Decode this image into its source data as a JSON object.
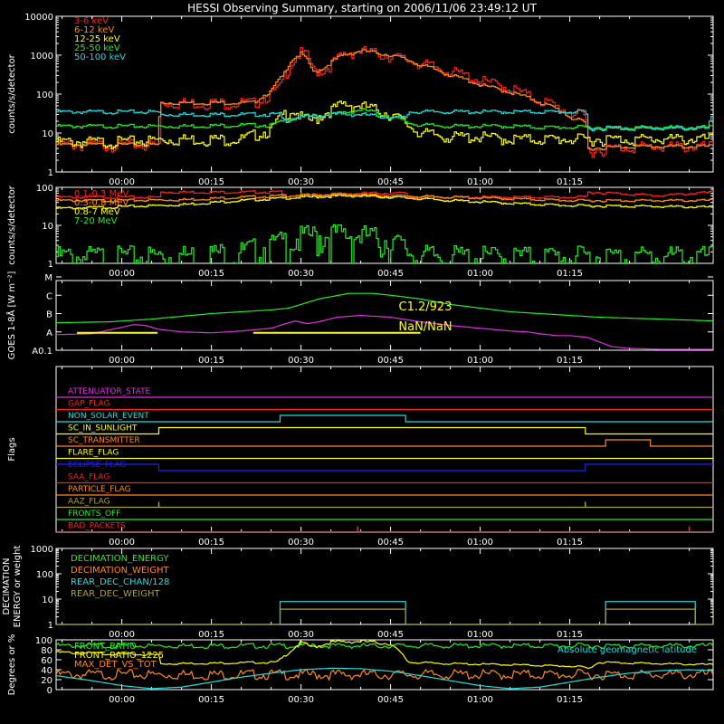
{
  "title": "HESSI Observing Summary, starting on 2006/11/06 23:49:12 UT",
  "time_ticks": [
    "00:00",
    "00:15",
    "00:30",
    "00:45",
    "01:00",
    "01:15"
  ],
  "colors": {
    "red": "#ff2020",
    "orange": "#ff8a1c",
    "yellow": "#ffff00",
    "green": "#22ee22",
    "cyan": "#22dddd",
    "magenta": "#e030e0",
    "blue": "#2020ff",
    "olive": "#a8a040",
    "white": "#ffffff"
  },
  "chart_data": [
    {
      "type": "line",
      "name": "lightcurves-low",
      "ylabel": "counts/s/detector",
      "yscale": "log",
      "ylim": [
        1,
        10000
      ],
      "yticks": [
        "1",
        "10",
        "100",
        "1000",
        "10000"
      ],
      "xlim_minutes": [
        -11,
        99
      ],
      "legend": [
        "3-6 keV",
        "6-12 keV",
        "12-25 keV",
        "25-50 keV",
        "50-100 keV"
      ],
      "series": [
        {
          "name": "3-6 keV",
          "x": [
            -11,
            -2,
            6.2,
            6.5,
            15,
            22,
            25,
            26.5,
            28,
            30,
            31,
            32,
            34,
            36,
            38,
            40,
            45,
            50,
            55,
            60,
            65,
            68,
            70,
            73,
            75,
            77.6,
            78,
            85,
            90,
            99
          ],
          "y": [
            5,
            5,
            5,
            60,
            60,
            60,
            100,
            150,
            500,
            1200,
            950,
            400,
            420,
            800,
            1200,
            1300,
            950,
            600,
            380,
            220,
            140,
            90,
            70,
            45,
            35,
            25,
            3.5,
            4.5,
            4.5,
            4.5
          ]
        },
        {
          "name": "6-12 keV",
          "x": [
            -11,
            -2,
            6,
            6.5,
            15,
            22,
            25,
            27,
            28.5,
            30,
            31,
            32,
            34,
            37,
            40,
            45,
            50,
            55,
            60,
            65,
            70,
            73,
            75,
            77.6,
            78,
            85,
            90,
            99
          ],
          "y": [
            5,
            5,
            5,
            60,
            60,
            60,
            120,
            300,
            800,
            1100,
            700,
            350,
            500,
            1000,
            1300,
            1000,
            550,
            300,
            170,
            110,
            60,
            40,
            25,
            18,
            4,
            4.5,
            4.5,
            4.5
          ]
        },
        {
          "name": "12-25 keV",
          "x": [
            -11,
            -2,
            10,
            20,
            25,
            27,
            28.5,
            30,
            32,
            35,
            37,
            40,
            45,
            48,
            50,
            55,
            60,
            65,
            70,
            75,
            80,
            85,
            90,
            99
          ],
          "y": [
            6,
            6,
            7,
            7,
            12,
            30,
            40,
            25,
            20,
            40,
            55,
            50,
            30,
            15,
            10,
            8,
            8,
            7,
            7,
            7,
            7,
            7,
            7,
            7
          ]
        },
        {
          "name": "25-50 keV",
          "x": [
            -11,
            -2,
            10,
            20,
            25,
            28,
            30,
            32,
            35,
            38,
            40,
            42,
            45,
            48,
            50,
            55,
            60,
            65,
            70,
            75,
            80,
            85,
            90,
            99
          ],
          "y": [
            15,
            15,
            15,
            16,
            16,
            22,
            26,
            28,
            30,
            35,
            40,
            35,
            26,
            18,
            16,
            15,
            15,
            15,
            14,
            14,
            14,
            14,
            14,
            14
          ]
        },
        {
          "name": "50-100 keV",
          "x": [
            -11,
            -2,
            6,
            6.5,
            15,
            26.5,
            27,
            28.5,
            30,
            35,
            40,
            45,
            47.5,
            48,
            60,
            77.6,
            78,
            85,
            98,
            99
          ],
          "y": [
            35,
            35,
            35,
            30,
            30,
            30,
            20,
            25,
            25,
            30,
            30,
            25,
            25,
            35,
            35,
            35,
            13,
            13,
            13,
            30
          ]
        }
      ]
    },
    {
      "type": "line",
      "name": "lightcurves-high",
      "ylabel": "counts/s/detector",
      "yscale": "log",
      "ylim": [
        1,
        100
      ],
      "yticks": [
        "1",
        "10",
        "100"
      ],
      "xlim_minutes": [
        -11,
        99
      ],
      "legend": [
        "0.1-0.3 MeV",
        "0.3-0.8 MeV",
        "0.8-7 MeV",
        "7-20 MeV"
      ],
      "series": [
        {
          "name": "0.1-0.3 MeV",
          "x": [
            -11,
            -2,
            6.2,
            6.5,
            15,
            26.5,
            27,
            30,
            40,
            47.5,
            48,
            60,
            77.6,
            78,
            90,
            99
          ],
          "y": [
            55,
            55,
            55,
            75,
            75,
            75,
            60,
            62,
            70,
            70,
            55,
            55,
            55,
            75,
            60,
            75
          ]
        },
        {
          "name": "0.3-0.8 MeV",
          "x": [
            -11,
            -2,
            10,
            20,
            30,
            38,
            45,
            55,
            65,
            75,
            85,
            99
          ],
          "y": [
            45,
            45,
            47,
            55,
            62,
            65,
            60,
            55,
            50,
            45,
            45,
            45
          ]
        },
        {
          "name": "0.8-7 MeV",
          "x": [
            -11,
            -2,
            10,
            20,
            30,
            38,
            45,
            55,
            65,
            75,
            85,
            99
          ],
          "y": [
            28,
            30,
            35,
            45,
            55,
            60,
            55,
            45,
            38,
            33,
            32,
            30
          ]
        },
        {
          "name": "7-20 MeV",
          "x": [
            -11,
            -2,
            10,
            20,
            25,
            30,
            35,
            40,
            45,
            48,
            50,
            60,
            75,
            99
          ],
          "y": [
            1.5,
            1.5,
            1.6,
            2,
            3,
            5,
            6,
            5.5,
            4,
            2,
            1.6,
            1.5,
            1.5,
            1.5
          ]
        }
      ]
    },
    {
      "type": "line",
      "name": "goes",
      "ylabel": "GOES 1-8Å [W m⁻²]",
      "yscale": "log",
      "ylim_labels": [
        "A0.1",
        "A",
        "B",
        "C",
        "M"
      ],
      "annotation_text": [
        "C1.2/923",
        "NaN/NaN"
      ],
      "xlim_minutes": [
        -11,
        99
      ],
      "series": [
        {
          "name": "GOES long",
          "x": [
            -11,
            -2,
            5,
            10,
            15,
            20,
            25,
            28,
            30,
            33,
            38,
            42,
            45,
            50,
            55,
            60,
            65,
            70,
            75,
            80,
            85,
            90,
            99
          ],
          "y": [
            0.5,
            0.55,
            0.7,
            0.85,
            1.0,
            1.1,
            1.2,
            1.3,
            1.5,
            1.8,
            2.1,
            2.1,
            2.0,
            1.8,
            1.5,
            1.3,
            1.1,
            1.0,
            0.9,
            0.8,
            0.75,
            0.7,
            0.6
          ]
        },
        {
          "name": "GOES short",
          "x": [
            -11,
            -5,
            0,
            2,
            4,
            6,
            10,
            15,
            20,
            25,
            28,
            29,
            31,
            33,
            36,
            40,
            45,
            50,
            55,
            60,
            65,
            68,
            70,
            73,
            75,
            78,
            80,
            82,
            85,
            90,
            99
          ],
          "y": [
            -0.15,
            -0.1,
            0.25,
            0.4,
            0.35,
            0.15,
            0.0,
            -0.05,
            0.05,
            0.2,
            0.5,
            0.6,
            0.45,
            0.55,
            0.8,
            0.9,
            0.8,
            0.55,
            0.35,
            0.2,
            0.05,
            0.0,
            -0.1,
            -0.2,
            -0.2,
            -0.3,
            -0.55,
            -0.8,
            -0.9,
            -0.95,
            -0.95
          ]
        },
        {
          "name": "flare bar 1",
          "x": [
            -7.5,
            6
          ],
          "y": [
            -0.05,
            -0.05
          ]
        },
        {
          "name": "flare bar 2",
          "x": [
            22,
            50
          ],
          "y": [
            -0.05,
            -0.05
          ]
        }
      ]
    },
    {
      "type": "line",
      "name": "flags",
      "ylabel": "Flags",
      "xlim_minutes": [
        -11,
        99
      ],
      "labels": [
        "ATTENUATOR_STATE",
        "GAP_FLAG",
        "NON_SOLAR_EVENT",
        "SC_IN_SUNLIGHT",
        "SC_TRANSMITTER",
        "FLARE_FLAG",
        "ECLIPSE_FLAG",
        "SAA_FLAG",
        "PARTICLE_FLAG",
        "AAZ_FLAG",
        "FRONTS_OFF",
        "BAD_PACKETS"
      ],
      "segments": [
        {
          "label": "NON_SOLAR_EVENT",
          "high": [
            [
              26.5,
              47.5
            ]
          ]
        },
        {
          "label": "SC_IN_SUNLIGHT",
          "high": [
            [
              6.2,
              77.6
            ]
          ]
        },
        {
          "label": "SC_TRANSMITTER",
          "high": [
            [
              81,
              88.5
            ]
          ]
        },
        {
          "label": "ECLIPSE_FLAG",
          "high": [
            [
              -11,
              6.2
            ],
            [
              77.6,
              99
            ]
          ]
        },
        {
          "label": "AAZ_FLAG",
          "spikes": [
            6.2,
            77.6
          ]
        },
        {
          "label": "BAD_PACKETS",
          "spikes": [
            39.5,
            95
          ]
        }
      ]
    },
    {
      "type": "line",
      "name": "decimation",
      "ylabel": "DECIMATION ENERGY or weight",
      "yscale": "log",
      "ylim": [
        1,
        1000
      ],
      "yticks": [
        "1",
        "10",
        "100",
        "1000"
      ],
      "xlim_minutes": [
        -11,
        99
      ],
      "legend": [
        "DECIMATION_ENERGY",
        "DECIMATION_WEIGHT",
        "REAR_DEC_CHAN/128",
        "REAR_DEC_WEIGHT"
      ],
      "series": [
        {
          "name": "REAR_DEC_CHAN/128",
          "x": [
            -11,
            26.5,
            26.5,
            47.5,
            47.5,
            81,
            81,
            96,
            96,
            99
          ],
          "y": [
            1,
            1,
            8,
            8,
            1,
            1,
            8,
            8,
            1,
            1
          ]
        },
        {
          "name": "REAR_DEC_WEIGHT",
          "x": [
            -11,
            26.5,
            26.5,
            47.5,
            47.5,
            81,
            81,
            96,
            96,
            99
          ],
          "y": [
            1,
            1,
            4,
            4,
            1,
            1,
            4,
            4,
            1,
            1
          ]
        }
      ]
    },
    {
      "type": "line",
      "name": "ratios",
      "ylabel": "Degrees or %",
      "ylim": [
        0,
        100
      ],
      "yticks": [
        "0",
        "20",
        "40",
        "60",
        "80",
        "100"
      ],
      "xlim_minutes": [
        -11,
        99
      ],
      "legend": [
        "FRONT_RATIO",
        "FRONT_RATIO_1225",
        "MAX_DET_VS_TOT"
      ],
      "annotation_text": "Absolute geomagnetic latitude",
      "series": [
        {
          "name": "FRONT_RATIO",
          "x": [
            -11,
            99
          ],
          "y": [
            88,
            88
          ]
        },
        {
          "name": "FRONT_RATIO_1225",
          "x": [
            -11,
            -2,
            5,
            6.2,
            6.5,
            15,
            26,
            28,
            30,
            32,
            35,
            40,
            45,
            47,
            48,
            55,
            65,
            75,
            77.6,
            78,
            80,
            90,
            99
          ],
          "y": [
            75,
            72,
            70,
            70,
            52,
            53,
            55,
            75,
            95,
            85,
            95,
            97,
            92,
            70,
            55,
            52,
            50,
            47,
            45,
            42,
            55,
            52,
            50
          ]
        },
        {
          "name": "MAX_DET_VS_TOT",
          "x": [
            -11,
            99
          ],
          "y": [
            30,
            30
          ]
        },
        {
          "name": "Absolute geomagnetic latitude",
          "x": [
            -11,
            -5,
            0,
            5,
            10,
            15,
            20,
            25,
            30,
            35,
            40,
            45,
            50,
            55,
            60,
            65,
            70,
            75,
            80,
            85,
            90,
            95,
            99
          ],
          "y": [
            28,
            18,
            8,
            2,
            5,
            15,
            25,
            33,
            40,
            43,
            42,
            37,
            28,
            18,
            8,
            2,
            5,
            15,
            25,
            33,
            38,
            40,
            38
          ]
        }
      ]
    }
  ]
}
